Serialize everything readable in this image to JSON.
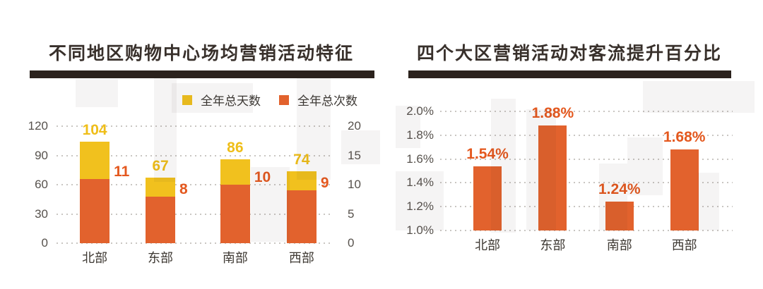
{
  "chart_data": [
    {
      "type": "bar",
      "title": "不同地区购物中心场均营销活动特征",
      "categories": [
        "北部",
        "东部",
        "南部",
        "西部"
      ],
      "series": [
        {
          "name": "全年总天数",
          "values": [
            104,
            67,
            86,
            74
          ],
          "color": "#F1C11E",
          "label_color": "#EFBE19",
          "axis": "left"
        },
        {
          "name": "全年总次数",
          "values": [
            11,
            8,
            10,
            9
          ],
          "color": "#E2622D",
          "label_color": "#E4581E",
          "axis": "right"
        }
      ],
      "left_axis": {
        "range": [
          0,
          120
        ],
        "ticks": [
          "120",
          "90",
          "60",
          "30",
          "0"
        ]
      },
      "right_axis": {
        "range": [
          0,
          20
        ],
        "ticks": [
          "20",
          "15",
          "10",
          "5",
          "0"
        ]
      },
      "legend_position": "top-right",
      "grid": "horizontal-dotted",
      "bar_style": "overlaid"
    },
    {
      "type": "bar",
      "title": "四个大区营销活动对客流提升百分比",
      "categories": [
        "北部",
        "东部",
        "南部",
        "西部"
      ],
      "values": [
        1.54,
        1.88,
        1.24,
        1.68
      ],
      "data_labels": [
        "1.54%",
        "1.88%",
        "1.24%",
        "1.68%"
      ],
      "bar_color": "#E2622D",
      "label_color": "#E4581E",
      "yaxis": {
        "range": [
          1.0,
          2.0
        ],
        "ticks": [
          "2.0%",
          "1.8%",
          "1.6%",
          "1.4%",
          "1.2%",
          "1.0%"
        ],
        "unit": "%"
      },
      "baseline": 1.0,
      "grid": "horizontal-dotted",
      "legend_position": "none"
    }
  ],
  "styles": {
    "title_color": "#38302B",
    "divider_color": "#2B221D",
    "tick_color": "#57524D",
    "category_color": "#3E3933",
    "grid_color": "#C9C6C2",
    "background": "#FFFFFF",
    "watermark_color": "rgba(62,48,34,0.05)"
  }
}
